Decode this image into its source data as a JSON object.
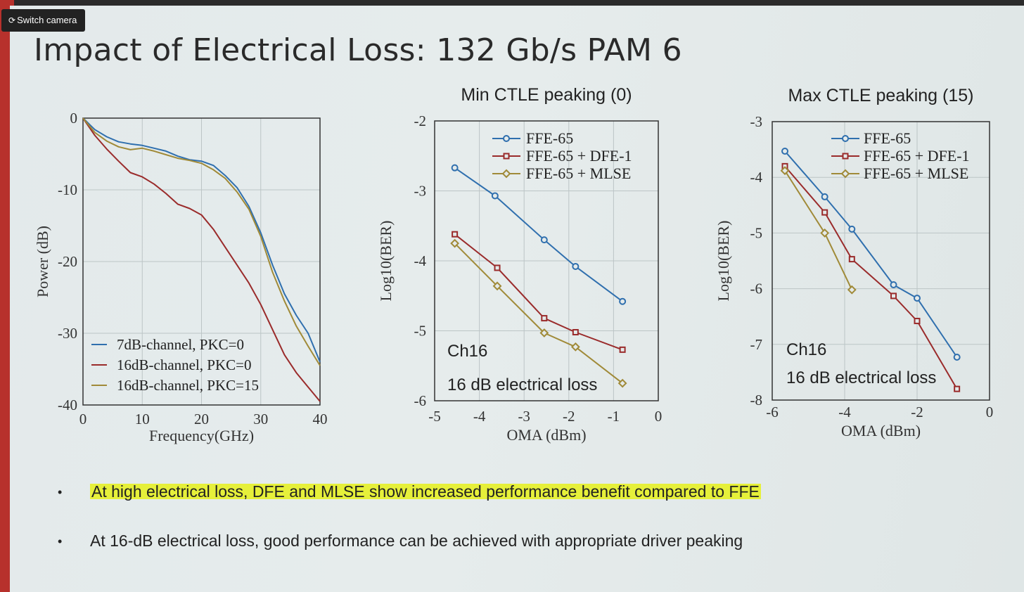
{
  "overlay": {
    "switch_camera_label": "Switch camera"
  },
  "slide": {
    "title": "Impact of Electrical Loss: 132 Gb/s PAM 6",
    "bullets": [
      {
        "text": "At high electrical loss, DFE and MLSE show increased performance benefit compared to FFE",
        "highlighted": true
      },
      {
        "text": "At 16-dB electrical loss, good performance can be achieved with appropriate driver peaking",
        "highlighted": false
      }
    ]
  },
  "chart_data": [
    {
      "type": "line",
      "title": "",
      "xlabel": "Frequency(GHz)",
      "ylabel": "Power (dB)",
      "xlim": [
        0,
        40
      ],
      "ylim": [
        -40,
        0
      ],
      "xticks": [
        "0",
        "10",
        "20",
        "30",
        "40"
      ],
      "yticks": [
        "0",
        "-10",
        "-20",
        "-30",
        "-40"
      ],
      "grid": true,
      "legend_position": "bottom-left",
      "series": [
        {
          "name": "7dB-channel, PKC=0",
          "color": "#2f6fae",
          "x": [
            0,
            2,
            4,
            6,
            8,
            10,
            12,
            14,
            16,
            18,
            20,
            22,
            24,
            26,
            28,
            30,
            32,
            34,
            36,
            38,
            40
          ],
          "y": [
            0,
            -1.6,
            -2.6,
            -3.3,
            -3.6,
            -3.8,
            -4.2,
            -4.6,
            -5.3,
            -5.8,
            -6.0,
            -6.6,
            -8.0,
            -9.7,
            -12.3,
            -16.0,
            -20.5,
            -24.5,
            -27.5,
            -30.0,
            -34.0
          ]
        },
        {
          "name": "16dB-channel, PKC=0",
          "color": "#9a2b2b",
          "x": [
            0,
            2,
            4,
            6,
            8,
            10,
            12,
            14,
            16,
            18,
            20,
            22,
            24,
            26,
            28,
            30,
            32,
            34,
            36,
            38,
            40
          ],
          "y": [
            0,
            -2.4,
            -4.3,
            -6.0,
            -7.6,
            -8.2,
            -9.2,
            -10.5,
            -12.0,
            -12.6,
            -13.5,
            -15.5,
            -18.0,
            -20.5,
            -23.0,
            -26.0,
            -29.5,
            -33.0,
            -35.5,
            -37.5,
            -39.5
          ]
        },
        {
          "name": "16dB-channel, PKC=15",
          "color": "#a08a38",
          "x": [
            0,
            2,
            4,
            6,
            8,
            10,
            12,
            14,
            16,
            18,
            20,
            22,
            24,
            26,
            28,
            30,
            32,
            34,
            36,
            38,
            40
          ],
          "y": [
            0,
            -2.0,
            -3.2,
            -4.0,
            -4.4,
            -4.2,
            -4.6,
            -5.1,
            -5.6,
            -5.9,
            -6.3,
            -7.2,
            -8.4,
            -10.3,
            -12.7,
            -16.5,
            -21.5,
            -25.5,
            -29.0,
            -31.8,
            -34.5
          ]
        }
      ]
    },
    {
      "type": "line",
      "title": "Min CTLE peaking (0)",
      "xlabel": "OMA (dBm)",
      "ylabel": "Log10(BER)",
      "xlim": [
        -5,
        0
      ],
      "ylim": [
        -6,
        -2
      ],
      "xticks": [
        "-5",
        "-4",
        "-3",
        "-2",
        "-1",
        "0"
      ],
      "yticks": [
        "-2",
        "-3",
        "-4",
        "-5",
        "-6"
      ],
      "grid": true,
      "legend_position": "top-right",
      "annotations": [
        "Ch16",
        "16 dB electrical loss"
      ],
      "series": [
        {
          "name": "FFE-65",
          "color": "#2f6fae",
          "marker": "circle",
          "x": [
            -4.55,
            -3.65,
            -2.55,
            -1.85,
            -0.8
          ],
          "y": [
            -2.67,
            -3.07,
            -3.7,
            -4.08,
            -4.58
          ]
        },
        {
          "name": "FFE-65 + DFE-1",
          "color": "#9a2b2b",
          "marker": "square",
          "x": [
            -4.55,
            -3.6,
            -2.55,
            -1.85,
            -0.8
          ],
          "y": [
            -3.62,
            -4.1,
            -4.82,
            -5.02,
            -5.27
          ]
        },
        {
          "name": "FFE-65 + MLSE",
          "color": "#a08a38",
          "marker": "diamond",
          "x": [
            -4.55,
            -3.6,
            -2.55,
            -1.85,
            -0.8
          ],
          "y": [
            -3.75,
            -4.36,
            -5.03,
            -5.23,
            -5.75
          ]
        }
      ]
    },
    {
      "type": "line",
      "title": "Max CTLE peaking (15)",
      "xlabel": "OMA (dBm)",
      "ylabel": "Log10(BER)",
      "xlim": [
        -6,
        0
      ],
      "ylim": [
        -8,
        -3
      ],
      "xticks": [
        "-6",
        "-4",
        "-2",
        "0"
      ],
      "yticks": [
        "-3",
        "-4",
        "-5",
        "-6",
        "-7",
        "-8"
      ],
      "grid": true,
      "legend_position": "top-right",
      "annotations": [
        "Ch16",
        "16 dB electrical loss"
      ],
      "series": [
        {
          "name": "FFE-65",
          "color": "#2f6fae",
          "marker": "circle",
          "x": [
            -5.65,
            -4.55,
            -3.8,
            -2.65,
            -2.0,
            -0.9
          ],
          "y": [
            -3.53,
            -4.35,
            -4.93,
            -5.93,
            -6.17,
            -7.23
          ]
        },
        {
          "name": "FFE-65 + DFE-1",
          "color": "#9a2b2b",
          "marker": "square",
          "x": [
            -5.65,
            -4.55,
            -3.8,
            -2.65,
            -2.0,
            -0.9
          ],
          "y": [
            -3.8,
            -4.63,
            -5.47,
            -6.13,
            -6.58,
            -7.8
          ]
        },
        {
          "name": "FFE-65 + MLSE",
          "color": "#a08a38",
          "marker": "diamond",
          "x": [
            -5.65,
            -4.55,
            -3.8
          ],
          "y": [
            -3.88,
            -5.0,
            -6.02
          ]
        }
      ]
    }
  ]
}
